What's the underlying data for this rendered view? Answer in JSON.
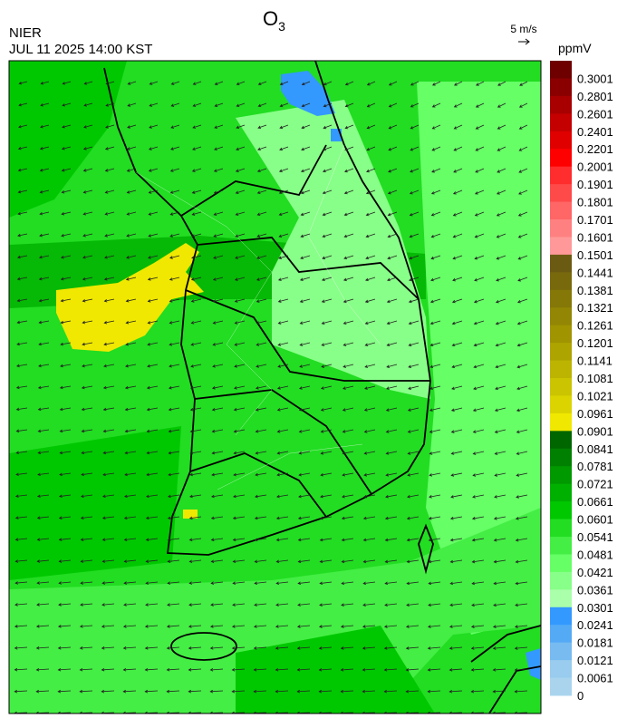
{
  "header": {
    "org": "NIER",
    "datetime": "JUL 11 2025 14:00 KST",
    "title": "O",
    "title_sub": "3"
  },
  "wind_legend": {
    "label": "5 m/s"
  },
  "colorbar": {
    "unit": "ppmV",
    "levels": [
      {
        "label": "0.3001",
        "color": "#6e0000"
      },
      {
        "label": "0.2801",
        "color": "#8a0000"
      },
      {
        "label": "0.2601",
        "color": "#a80000"
      },
      {
        "label": "0.2401",
        "color": "#c40000"
      },
      {
        "label": "0.2201",
        "color": "#e00000"
      },
      {
        "label": "0.2001",
        "color": "#ff0000"
      },
      {
        "label": "0.1901",
        "color": "#ff2d2d"
      },
      {
        "label": "0.1801",
        "color": "#ff4a4a"
      },
      {
        "label": "0.1701",
        "color": "#ff6666"
      },
      {
        "label": "0.1601",
        "color": "#ff8080"
      },
      {
        "label": "0.1501",
        "color": "#ff9999"
      },
      {
        "label": "0.1441",
        "color": "#6b5a12"
      },
      {
        "label": "0.1381",
        "color": "#786a0c"
      },
      {
        "label": "0.1321",
        "color": "#857808"
      },
      {
        "label": "0.1261",
        "color": "#928604"
      },
      {
        "label": "0.1201",
        "color": "#a09400"
      },
      {
        "label": "0.1141",
        "color": "#aea400"
      },
      {
        "label": "0.1081",
        "color": "#bcb400"
      },
      {
        "label": "0.1021",
        "color": "#cbc400"
      },
      {
        "label": "0.0961",
        "color": "#dcd400"
      },
      {
        "label": "0.0901",
        "color": "#f0e800"
      },
      {
        "label": "0.0841",
        "color": "#006600"
      },
      {
        "label": "0.0781",
        "color": "#008000"
      },
      {
        "label": "0.0721",
        "color": "#009900"
      },
      {
        "label": "0.0661",
        "color": "#00b000"
      },
      {
        "label": "0.0601",
        "color": "#00c800"
      },
      {
        "label": "0.0541",
        "color": "#22dd22"
      },
      {
        "label": "0.0481",
        "color": "#44ee44"
      },
      {
        "label": "0.0421",
        "color": "#66ff66"
      },
      {
        "label": "0.0361",
        "color": "#88ff88"
      },
      {
        "label": "0.0301",
        "color": "#aaffaa"
      },
      {
        "label": "0.0241",
        "color": "#3399ff"
      },
      {
        "label": "0.0181",
        "color": "#55aaf5"
      },
      {
        "label": "0.0121",
        "color": "#77bbf0"
      },
      {
        "label": "0.0061",
        "color": "#99ccee"
      },
      {
        "label": "0",
        "color": "#aad4ee"
      }
    ]
  }
}
